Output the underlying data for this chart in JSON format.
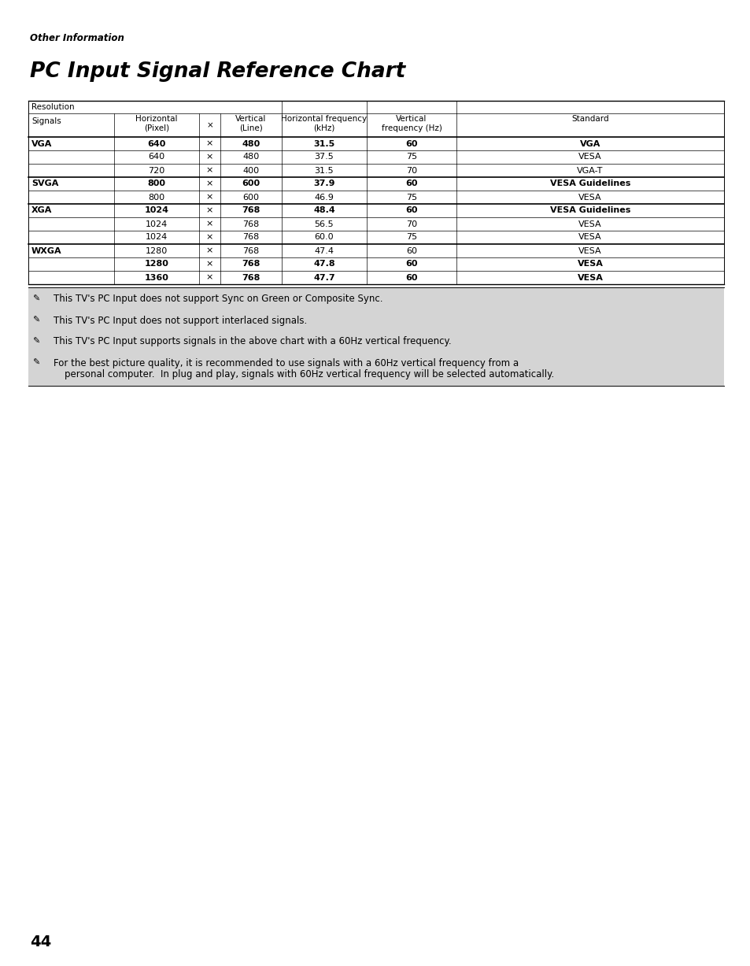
{
  "page_label": "Other Information",
  "title": "PC Input Signal Reference Chart",
  "page_number": "44",
  "rows": [
    {
      "signal": "VGA",
      "bold_signal": true,
      "horiz": "640",
      "vert": "480",
      "hfreq": "31.5",
      "vfreq": "60",
      "std": "VGA",
      "bold": true,
      "group_top": true
    },
    {
      "signal": "",
      "bold_signal": false,
      "horiz": "640",
      "vert": "480",
      "hfreq": "37.5",
      "vfreq": "75",
      "std": "VESA",
      "bold": false,
      "group_top": false
    },
    {
      "signal": "",
      "bold_signal": false,
      "horiz": "720",
      "vert": "400",
      "hfreq": "31.5",
      "vfreq": "70",
      "std": "VGA-T",
      "bold": false,
      "group_top": false
    },
    {
      "signal": "SVGA",
      "bold_signal": true,
      "horiz": "800",
      "vert": "600",
      "hfreq": "37.9",
      "vfreq": "60",
      "std": "VESA Guidelines",
      "bold": true,
      "group_top": true
    },
    {
      "signal": "",
      "bold_signal": false,
      "horiz": "800",
      "vert": "600",
      "hfreq": "46.9",
      "vfreq": "75",
      "std": "VESA",
      "bold": false,
      "group_top": false
    },
    {
      "signal": "XGA",
      "bold_signal": true,
      "horiz": "1024",
      "vert": "768",
      "hfreq": "48.4",
      "vfreq": "60",
      "std": "VESA Guidelines",
      "bold": true,
      "group_top": true
    },
    {
      "signal": "",
      "bold_signal": false,
      "horiz": "1024",
      "vert": "768",
      "hfreq": "56.5",
      "vfreq": "70",
      "std": "VESA",
      "bold": false,
      "group_top": false
    },
    {
      "signal": "",
      "bold_signal": false,
      "horiz": "1024",
      "vert": "768",
      "hfreq": "60.0",
      "vfreq": "75",
      "std": "VESA",
      "bold": false,
      "group_top": false
    },
    {
      "signal": "WXGA",
      "bold_signal": true,
      "horiz": "1280",
      "vert": "768",
      "hfreq": "47.4",
      "vfreq": "60",
      "std": "VESA",
      "bold": false,
      "group_top": true
    },
    {
      "signal": "",
      "bold_signal": false,
      "horiz": "1280",
      "vert": "768",
      "hfreq": "47.8",
      "vfreq": "60",
      "std": "VESA",
      "bold": true,
      "group_top": false
    },
    {
      "signal": "",
      "bold_signal": false,
      "horiz": "1360",
      "vert": "768",
      "hfreq": "47.7",
      "vfreq": "60",
      "std": "VESA",
      "bold": true,
      "group_top": false
    }
  ],
  "notes": [
    "This TV's PC Input does not support Sync on Green or Composite Sync.",
    "This TV's PC Input does not support interlaced signals.",
    "This TV's PC Input supports signals in the above chart with a 60Hz vertical frequency.",
    "For the best picture quality, it is recommended to use signals with a 60Hz vertical frequency from a\npersonal computer.  In plug and play, signals with 60Hz vertical frequency will be selected automatically."
  ],
  "note_bg": "#d4d4d4",
  "bg_color": "#ffffff"
}
